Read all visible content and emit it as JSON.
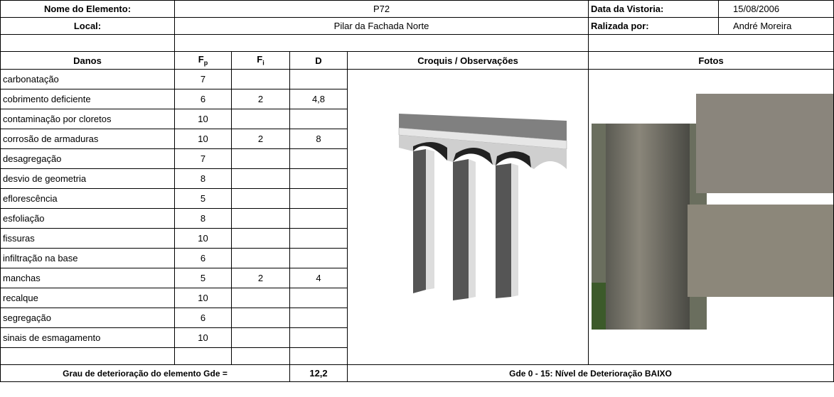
{
  "header": {
    "element_label": "Nome do Elemento:",
    "element": "P72",
    "date_label": "Data da Vistoria:",
    "date": "15/08/2006",
    "location_label": "Local:",
    "location": "Pilar da Fachada Norte",
    "by_label": "Ralizada por:",
    "by": "André Moreira"
  },
  "columns": {
    "damage": "Danos",
    "fp": {
      "main": "F",
      "sub": "p"
    },
    "fi": {
      "main": "F",
      "sub": "i"
    },
    "d": "D",
    "sketch": "Croquis / Observações",
    "photos": "Fotos"
  },
  "table": {
    "rows": [
      [
        "carbonatação",
        "7",
        "",
        ""
      ],
      [
        "cobrimento deficiente",
        "6",
        "2",
        "4,8"
      ],
      [
        "contaminação por cloretos",
        "10",
        "",
        ""
      ],
      [
        "corrosão de armaduras",
        "10",
        "2",
        "8"
      ],
      [
        "desagregação",
        "7",
        "",
        ""
      ],
      [
        "desvio de geometria",
        "8",
        "",
        ""
      ],
      [
        "eflorescência",
        "5",
        "",
        ""
      ],
      [
        "esfoliação",
        "8",
        "",
        ""
      ],
      [
        "fissuras",
        "10",
        "",
        ""
      ],
      [
        "infiltração na base",
        "6",
        "",
        ""
      ],
      [
        "manchas",
        "5",
        "2",
        "4"
      ],
      [
        "recalque",
        "10",
        "",
        ""
      ],
      [
        "segregação",
        "6",
        "",
        ""
      ],
      [
        "sinais de esmagamento",
        "10",
        "",
        ""
      ]
    ]
  },
  "footer": {
    "gde_label": "Grau de deterioração do elemento Gde  =",
    "gde": "12,2",
    "level": "Gde 0 - 15:  Nível de Deterioração BAIXO"
  }
}
